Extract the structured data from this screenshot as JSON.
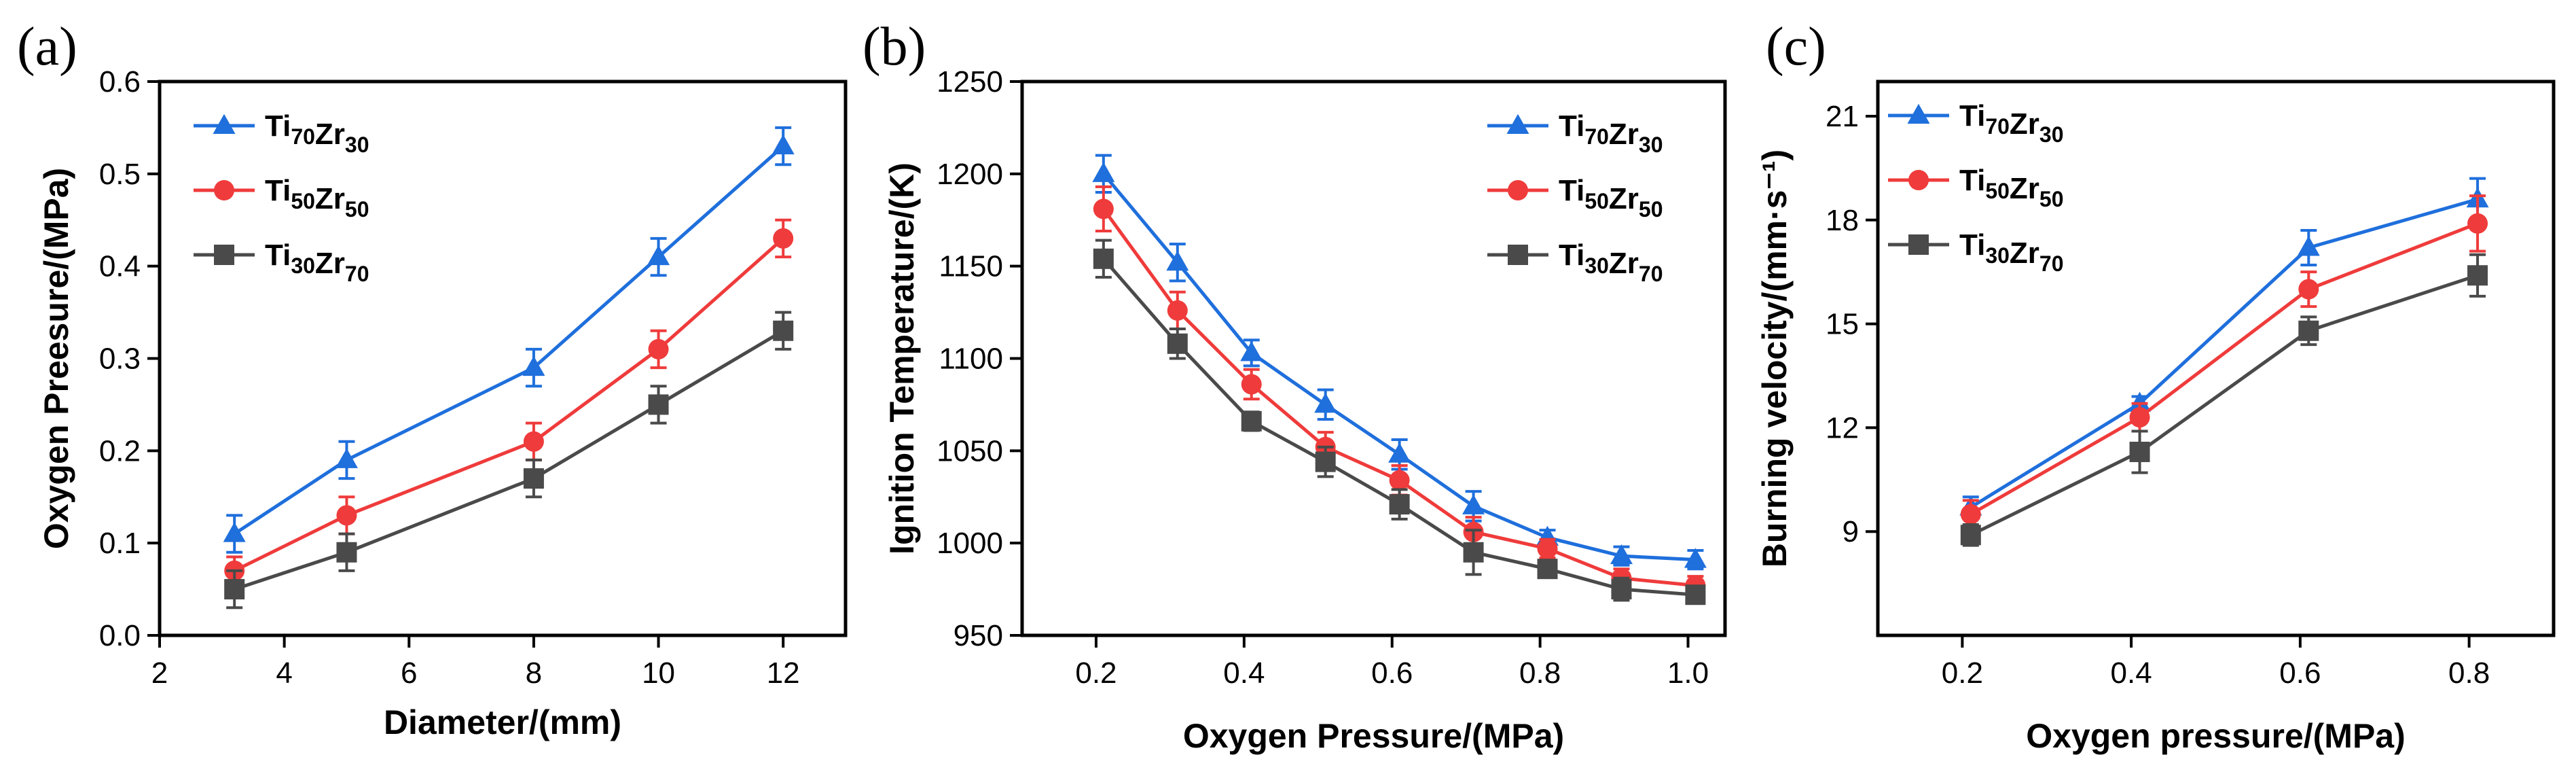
{
  "chart_data": [
    {
      "panel": "(a)",
      "type": "line",
      "xlabel": "Diameter/(mm)",
      "ylabel": "Oxygen Preesure/(MPa)",
      "xlim": [
        2,
        13
      ],
      "ylim": [
        0,
        0.6
      ],
      "xticks": [
        "2",
        "4",
        "6",
        "8",
        "10",
        "12"
      ],
      "yticks": [
        "0.0",
        "0.1",
        "0.2",
        "0.3",
        "0.4",
        "0.5",
        "0.6"
      ],
      "legend_position": "top-left",
      "series": [
        {
          "name": "Ti70Zr30",
          "marker": "triangle",
          "color": "#1f6fdc",
          "x": [
            3.2,
            5,
            8,
            10,
            12
          ],
          "y": [
            0.11,
            0.19,
            0.29,
            0.41,
            0.53
          ],
          "err": [
            0.02,
            0.02,
            0.02,
            0.02,
            0.02
          ]
        },
        {
          "name": "Ti50Zr50",
          "marker": "circle",
          "color": "#ef3b3b",
          "x": [
            3.2,
            5,
            8,
            10,
            12
          ],
          "y": [
            0.07,
            0.13,
            0.21,
            0.31,
            0.43
          ],
          "err": [
            0.015,
            0.02,
            0.02,
            0.02,
            0.02
          ]
        },
        {
          "name": "Ti30Zr70",
          "marker": "square",
          "color": "#4a4a4a",
          "x": [
            3.2,
            5,
            8,
            10,
            12
          ],
          "y": [
            0.05,
            0.09,
            0.17,
            0.25,
            0.33
          ],
          "err": [
            0.02,
            0.02,
            0.02,
            0.02,
            0.02
          ]
        }
      ]
    },
    {
      "panel": "(b)",
      "type": "line",
      "xlabel": "Oxygen Pressure/(MPa)",
      "ylabel": "Ignition Temperature/(K)",
      "xlim": [
        0.1,
        1.05
      ],
      "ylim": [
        950,
        1250
      ],
      "xticks": [
        "0.2",
        "0.4",
        "0.6",
        "0.8",
        "1.0"
      ],
      "yticks": [
        "950",
        "1000",
        "1050",
        "1100",
        "1150",
        "1200",
        "1250"
      ],
      "legend_position": "top-right",
      "series": [
        {
          "name": "Ti70Zr30",
          "marker": "triangle",
          "color": "#1f6fdc",
          "x": [
            0.21,
            0.31,
            0.41,
            0.51,
            0.61,
            0.71,
            0.81,
            0.91,
            1.01
          ],
          "y": [
            1200,
            1152,
            1103,
            1075,
            1048,
            1020,
            1003,
            993,
            991
          ],
          "err": [
            10,
            10,
            7,
            8,
            8,
            8,
            4,
            5,
            5
          ]
        },
        {
          "name": "Ti50Zr50",
          "marker": "circle",
          "color": "#ef3b3b",
          "x": [
            0.21,
            0.31,
            0.41,
            0.51,
            0.61,
            0.71,
            0.81,
            0.91,
            1.01
          ],
          "y": [
            1181,
            1126,
            1086,
            1052,
            1034,
            1006,
            997,
            981,
            977
          ],
          "err": [
            12,
            10,
            8,
            8,
            8,
            8,
            5,
            5,
            5
          ]
        },
        {
          "name": "Ti30Zr70",
          "marker": "square",
          "color": "#4a4a4a",
          "x": [
            0.21,
            0.31,
            0.41,
            0.51,
            0.61,
            0.71,
            0.81,
            0.91,
            1.01
          ],
          "y": [
            1154,
            1108,
            1066,
            1044,
            1021,
            995,
            986,
            975,
            972
          ],
          "err": [
            10,
            8,
            5,
            8,
            8,
            12,
            4,
            6,
            4
          ]
        }
      ]
    },
    {
      "panel": "(c)",
      "type": "line",
      "xlabel": "Oxygen pressure/(MPa)",
      "ylabel": "Burning velocity/(mm·s⁻¹)",
      "xlim": [
        0.1,
        0.9
      ],
      "ylim": [
        6,
        22
      ],
      "xticks": [
        "0.2",
        "0.4",
        "0.6",
        "0.8"
      ],
      "yticks": [
        "9",
        "12",
        "15",
        "18",
        "21"
      ],
      "legend_position": "top-left",
      "series": [
        {
          "name": "Ti70Zr30",
          "marker": "triangle",
          "color": "#1f6fdc",
          "x": [
            0.21,
            0.41,
            0.61,
            0.81
          ],
          "y": [
            9.7,
            12.7,
            17.2,
            18.6
          ],
          "err": [
            0.3,
            0.2,
            0.5,
            0.6
          ]
        },
        {
          "name": "Ti50Zr50",
          "marker": "circle",
          "color": "#ef3b3b",
          "x": [
            0.21,
            0.41,
            0.61,
            0.81
          ],
          "y": [
            9.5,
            12.3,
            16.0,
            17.9
          ],
          "err": [
            0.4,
            0.4,
            0.5,
            0.8
          ]
        },
        {
          "name": "Ti30Zr70",
          "marker": "square",
          "color": "#4a4a4a",
          "x": [
            0.21,
            0.41,
            0.61,
            0.81
          ],
          "y": [
            8.9,
            11.3,
            14.8,
            16.4
          ],
          "err": [
            0.3,
            0.6,
            0.4,
            0.6
          ]
        }
      ]
    }
  ]
}
